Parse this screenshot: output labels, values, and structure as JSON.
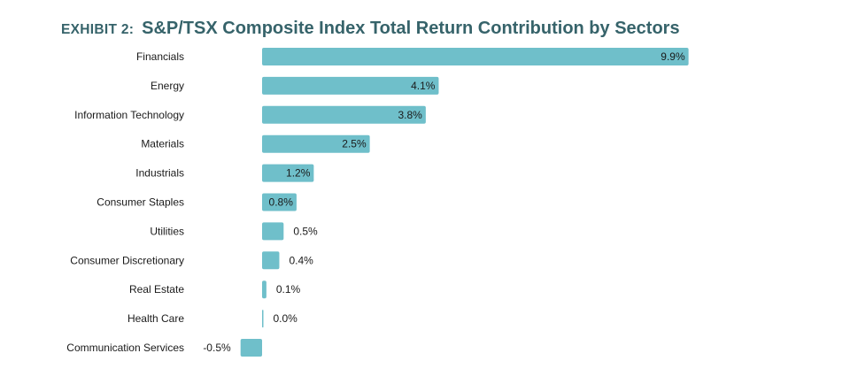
{
  "title": {
    "prefix": "EXHIBIT 2:",
    "text": "S&P/TSX Composite Index Total Return Contribution by Sectors"
  },
  "colors": {
    "bar": "#6fbfca",
    "title": "#36636a",
    "text": "#1a1a1a"
  },
  "chart_data": {
    "type": "bar",
    "orientation": "horizontal",
    "categories": [
      "Financials",
      "Energy",
      "Information Technology",
      "Materials",
      "Industrials",
      "Consumer Staples",
      "Utilities",
      "Consumer Discretionary",
      "Real Estate",
      "Health Care",
      "Communication Services"
    ],
    "values": [
      9.9,
      4.1,
      3.8,
      2.5,
      1.2,
      0.8,
      0.5,
      0.4,
      0.1,
      0.0,
      -0.5
    ],
    "value_labels": [
      "9.9%",
      "4.1%",
      "3.8%",
      "2.5%",
      "1.2%",
      "0.8%",
      "0.5%",
      "0.4%",
      "0.1%",
      "0.0%",
      "-0.5%"
    ],
    "unit": "%",
    "xlim": [
      -0.5,
      9.9
    ],
    "grid": false,
    "legend": "none"
  }
}
